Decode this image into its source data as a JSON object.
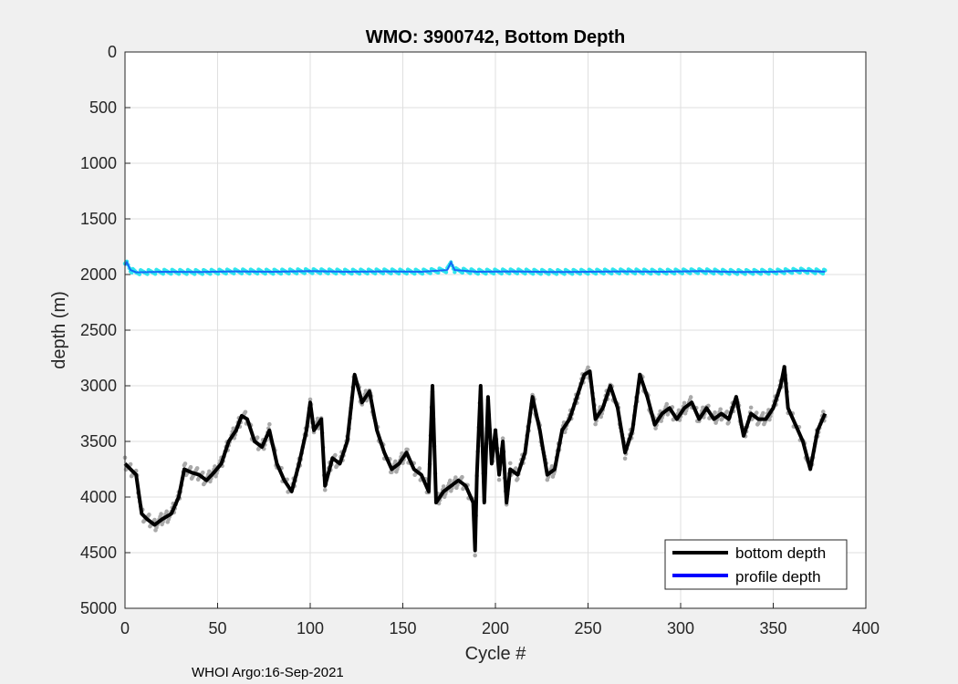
{
  "chart_data": {
    "type": "line",
    "title": "WMO: 3900742, Bottom Depth",
    "xlabel": "Cycle #",
    "ylabel": "depth (m)",
    "xlim": [
      0,
      400
    ],
    "ylim": [
      0,
      5000
    ],
    "y_reversed": true,
    "grid": true,
    "legend_position": "bottom-right",
    "xticks": [
      "0",
      "50",
      "100",
      "150",
      "200",
      "250",
      "300",
      "350",
      "400"
    ],
    "yticks": [
      "0",
      "500",
      "1000",
      "1500",
      "2000",
      "2500",
      "3000",
      "3500",
      "4000",
      "4500",
      "5000"
    ],
    "series": [
      {
        "name": "bottom depth",
        "color": "#000000",
        "x": [
          0,
          3,
          6,
          9,
          12,
          16,
          20,
          25,
          29,
          32,
          36,
          40,
          44,
          48,
          52,
          56,
          60,
          63,
          66,
          70,
          74,
          78,
          82,
          86,
          90,
          94,
          98,
          100,
          102,
          106,
          108,
          112,
          116,
          120,
          124,
          128,
          132,
          136,
          140,
          144,
          148,
          152,
          156,
          160,
          164,
          166,
          168,
          172,
          176,
          180,
          184,
          188,
          189,
          190,
          192,
          194,
          196,
          198,
          200,
          202,
          204,
          206,
          208,
          212,
          216,
          220,
          224,
          228,
          232,
          236,
          240,
          244,
          248,
          251,
          254,
          258,
          262,
          266,
          270,
          274,
          278,
          282,
          286,
          290,
          294,
          298,
          302,
          306,
          310,
          314,
          318,
          322,
          326,
          330,
          334,
          338,
          342,
          346,
          350,
          354,
          356,
          358,
          362,
          366,
          370,
          374,
          378
        ],
        "y": [
          3700,
          3750,
          3800,
          4150,
          4200,
          4250,
          4200,
          4150,
          4000,
          3750,
          3780,
          3800,
          3850,
          3780,
          3700,
          3500,
          3400,
          3270,
          3300,
          3500,
          3550,
          3400,
          3700,
          3850,
          3950,
          3700,
          3400,
          3150,
          3400,
          3300,
          3900,
          3650,
          3700,
          3500,
          2900,
          3150,
          3050,
          3400,
          3600,
          3750,
          3700,
          3600,
          3750,
          3800,
          3950,
          3000,
          4050,
          3950,
          3900,
          3850,
          3900,
          4050,
          4480,
          3800,
          3000,
          4050,
          3100,
          3700,
          3400,
          3800,
          3500,
          4050,
          3750,
          3800,
          3600,
          3100,
          3400,
          3800,
          3750,
          3400,
          3300,
          3100,
          2900,
          2870,
          3300,
          3200,
          3000,
          3200,
          3600,
          3400,
          2900,
          3100,
          3350,
          3250,
          3200,
          3300,
          3200,
          3150,
          3300,
          3200,
          3300,
          3250,
          3300,
          3100,
          3450,
          3250,
          3300,
          3300,
          3200,
          3000,
          2830,
          3200,
          3350,
          3500,
          3750,
          3400,
          3250
        ]
      },
      {
        "name": "profile depth",
        "color": "#0000ff",
        "x": [
          0,
          1,
          3,
          6,
          20,
          40,
          60,
          80,
          100,
          120,
          140,
          160,
          174,
          176,
          178,
          190,
          210,
          230,
          250,
          270,
          290,
          310,
          330,
          350,
          365,
          378
        ],
        "y": [
          1920,
          1890,
          1960,
          1980,
          1975,
          1978,
          1972,
          1975,
          1970,
          1975,
          1972,
          1975,
          1960,
          1890,
          1960,
          1975,
          1972,
          1978,
          1975,
          1972,
          1975,
          1970,
          1978,
          1975,
          1965,
          1975
        ]
      }
    ],
    "annotations": [
      "WHOI Argo:16-Sep-2021"
    ]
  }
}
